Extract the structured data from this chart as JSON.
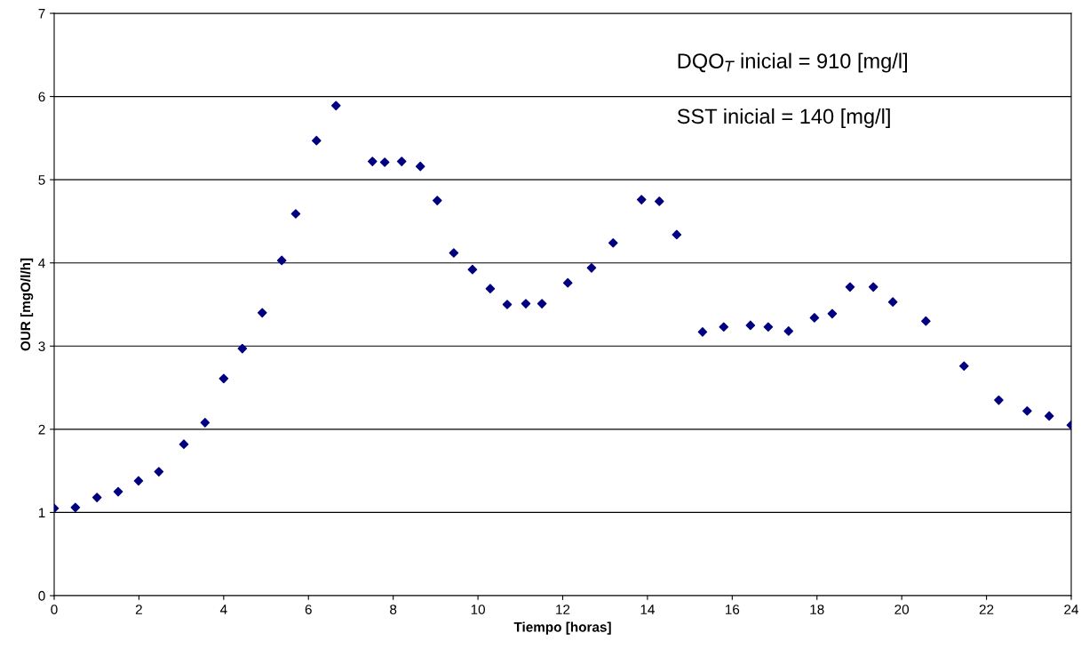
{
  "chart_data": {
    "type": "scatter",
    "xlabel": "Tiempo [horas]",
    "ylabel": "OUR [mgO/l/h]",
    "x": [
      0,
      0.5,
      1.01,
      1.51,
      1.99,
      2.47,
      3.06,
      3.56,
      4.0,
      4.44,
      4.91,
      5.37,
      5.7,
      6.19,
      6.65,
      7.51,
      7.8,
      8.2,
      8.64,
      9.04,
      9.43,
      9.87,
      10.29,
      10.69,
      11.13,
      11.51,
      12.12,
      12.68,
      13.19,
      13.86,
      14.28,
      14.69,
      15.3,
      15.8,
      16.43,
      16.85,
      17.33,
      17.94,
      18.36,
      18.78,
      19.33,
      19.79,
      20.57,
      21.47,
      22.29,
      22.96,
      23.48,
      24.0
    ],
    "series": [
      {
        "color": "#000080",
        "values": [
          1.05,
          1.06,
          1.18,
          1.25,
          1.38,
          1.49,
          1.82,
          2.08,
          2.61,
          2.97,
          3.4,
          4.03,
          4.59,
          5.47,
          5.89,
          5.22,
          5.21,
          5.22,
          5.16,
          4.75,
          4.12,
          3.92,
          3.69,
          3.5,
          3.51,
          3.51,
          3.76,
          3.94,
          4.24,
          4.76,
          4.74,
          4.34,
          3.17,
          3.23,
          3.25,
          3.23,
          3.18,
          3.34,
          3.39,
          3.71,
          3.71,
          3.53,
          3.3,
          2.76,
          2.35,
          2.22,
          2.16,
          2.05
        ]
      }
    ],
    "xlim": [
      0,
      24
    ],
    "xticks": [
      0,
      2,
      4,
      6,
      8,
      10,
      12,
      14,
      16,
      18,
      20,
      22,
      24
    ],
    "ylim": [
      0,
      7
    ],
    "yticks": [
      0,
      1,
      2,
      3,
      4,
      5,
      6,
      7
    ],
    "grid": "y",
    "marker": "diamond",
    "annotations": [
      "DQO$_{T}$ inicial = 910 [mg/l]",
      "SST inicial = 140 [mg/l]"
    ]
  }
}
